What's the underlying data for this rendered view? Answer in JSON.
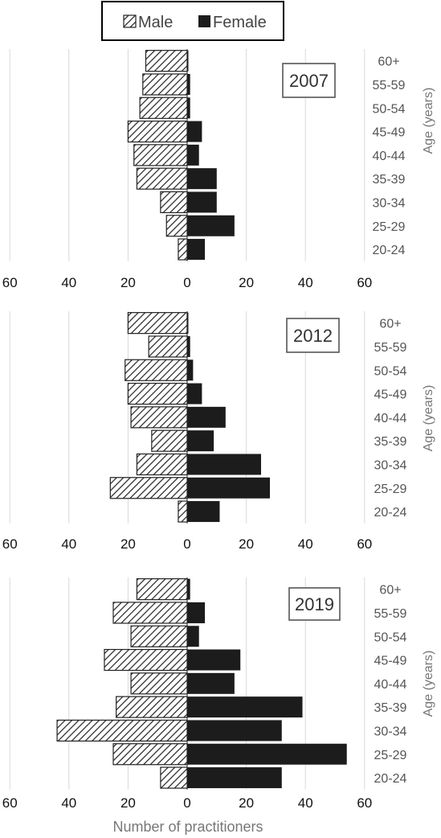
{
  "legend": {
    "male_label": "Male",
    "female_label": "Female",
    "male_pattern": "diagonal-hatch",
    "female_color": "#1c1c1c"
  },
  "x_axis_title": "Number of practitioners",
  "y_axis_title": "Age (years)",
  "chart_data": [
    {
      "type": "bar",
      "orientation": "horizontal-population-pyramid",
      "title": "2007",
      "categories": [
        "20-24",
        "25-29",
        "30-34",
        "35-39",
        "40-44",
        "45-49",
        "50-54",
        "55-59",
        "60+"
      ],
      "series": [
        {
          "name": "Male",
          "values": [
            3,
            7,
            9,
            17,
            18,
            20,
            16,
            15,
            14
          ]
        },
        {
          "name": "Female",
          "values": [
            6,
            16,
            10,
            10,
            4,
            5,
            1,
            1,
            0
          ]
        }
      ],
      "xticks": [
        "60",
        "40",
        "20",
        "0",
        "20",
        "40",
        "60"
      ],
      "xlim": [
        -60,
        60
      ],
      "grid": true
    },
    {
      "type": "bar",
      "orientation": "horizontal-population-pyramid",
      "title": "2012",
      "categories": [
        "20-24",
        "25-29",
        "30-34",
        "35-39",
        "40-44",
        "45-49",
        "50-54",
        "55-59",
        "60+"
      ],
      "series": [
        {
          "name": "Male",
          "values": [
            3,
            26,
            17,
            12,
            19,
            20,
            21,
            13,
            20
          ]
        },
        {
          "name": "Female",
          "values": [
            11,
            28,
            25,
            9,
            13,
            5,
            2,
            1,
            0
          ]
        }
      ],
      "xticks": [
        "60",
        "40",
        "20",
        "0",
        "20",
        "40",
        "60"
      ],
      "xlim": [
        -60,
        60
      ],
      "grid": true
    },
    {
      "type": "bar",
      "orientation": "horizontal-population-pyramid",
      "title": "2019",
      "categories": [
        "20-24",
        "25-29",
        "30-34",
        "35-39",
        "40-44",
        "45-49",
        "50-54",
        "55-59",
        "60+"
      ],
      "series": [
        {
          "name": "Male",
          "values": [
            9,
            25,
            44,
            24,
            19,
            28,
            19,
            25,
            17
          ]
        },
        {
          "name": "Female",
          "values": [
            32,
            54,
            32,
            39,
            16,
            18,
            4,
            6,
            1
          ]
        }
      ],
      "xticks": [
        "60",
        "40",
        "20",
        "0",
        "20",
        "40",
        "60"
      ],
      "xlim": [
        -60,
        60
      ],
      "grid": true
    }
  ]
}
